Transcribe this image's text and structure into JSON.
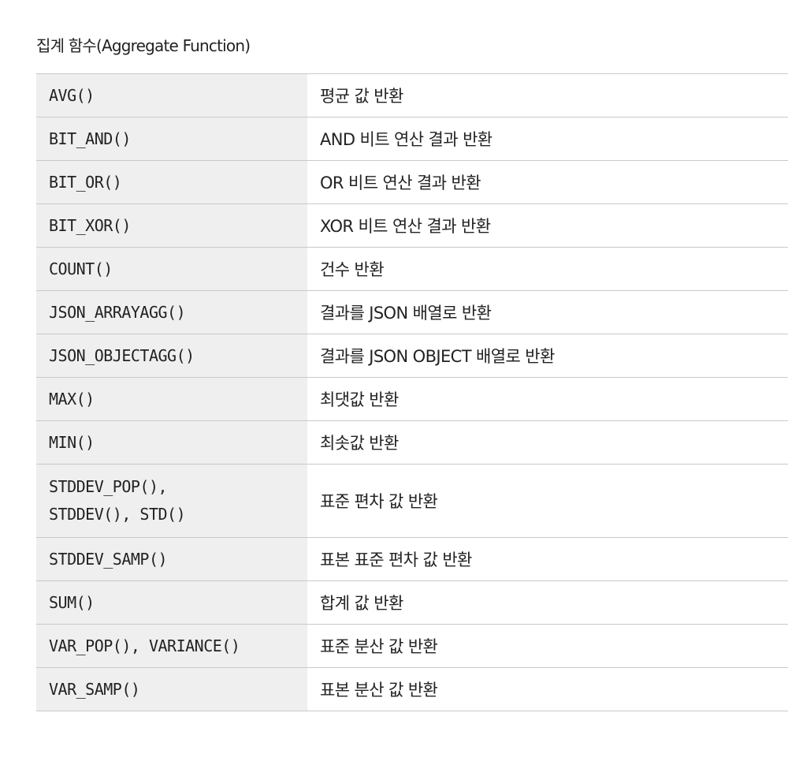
{
  "caption": "집계 함수(Aggregate Function)",
  "rows": [
    {
      "function": "AVG()",
      "description": "평균 값 반환"
    },
    {
      "function": "BIT_AND()",
      "description": "AND 비트 연산 결과 반환"
    },
    {
      "function": "BIT_OR()",
      "description": "OR 비트 연산 결과 반환"
    },
    {
      "function": "BIT_XOR()",
      "description": "XOR 비트 연산 결과 반환"
    },
    {
      "function": "COUNT()",
      "description": "건수 반환"
    },
    {
      "function": "JSON_ARRAYAGG()",
      "description": "결과를 JSON 배열로 반환"
    },
    {
      "function": "JSON_OBJECTAGG()",
      "description": "결과를 JSON OBJECT 배열로 반환"
    },
    {
      "function": "MAX()",
      "description": "최댓값 반환"
    },
    {
      "function": "MIN()",
      "description": "최솟값 반환"
    },
    {
      "function_lines": [
        "STDDEV_POP(),",
        "STDDEV(), STD()"
      ],
      "description": "표준 편차 값 반환"
    },
    {
      "function": "STDDEV_SAMP()",
      "description": "표본 표준 편차 값 반환"
    },
    {
      "function": "SUM()",
      "description": "합계 값 반환"
    },
    {
      "function": "VAR_POP(), VARIANCE()",
      "description": "표준 분산 값 반환"
    },
    {
      "function": "VAR_SAMP()",
      "description": "표본 분산 값 반환"
    }
  ]
}
